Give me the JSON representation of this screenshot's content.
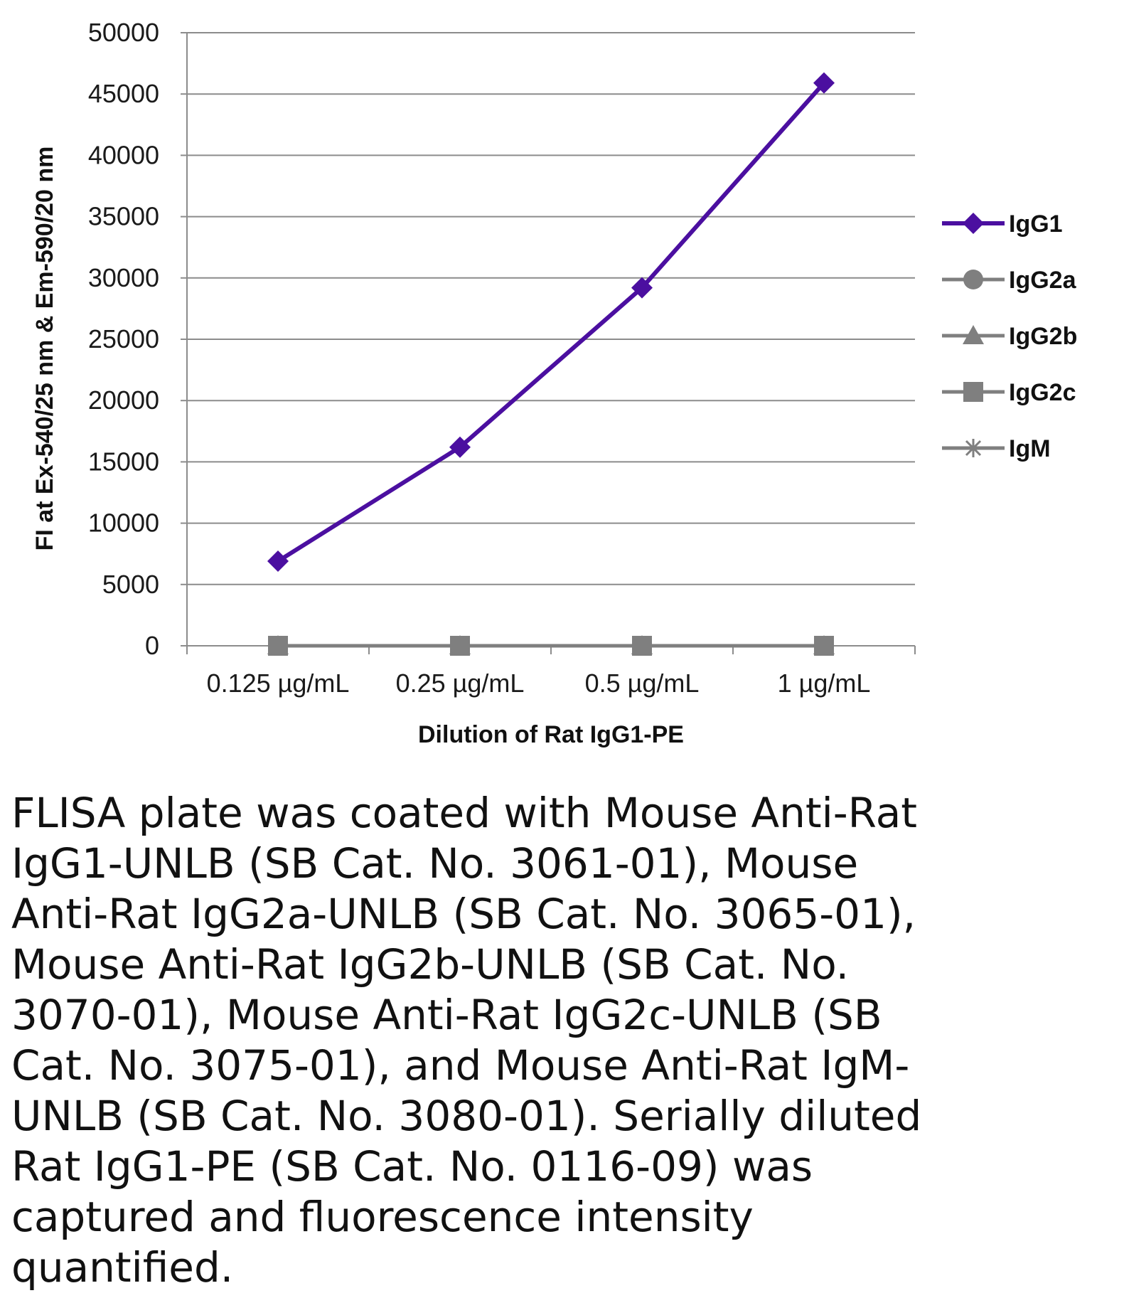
{
  "chart_data": {
    "type": "line",
    "title": "",
    "xlabel": "Dilution of Rat IgG1-PE",
    "ylabel": "FI at Ex-540/25 nm & Em-590/20 nm",
    "categories": [
      "0.125 µg/mL",
      "0.25 µg/mL",
      "0.5 µg/mL",
      "1 µg/mL"
    ],
    "ylim": [
      0,
      50000
    ],
    "yticks": [
      "0",
      "5000",
      "10000",
      "15000",
      "20000",
      "25000",
      "30000",
      "35000",
      "40000",
      "45000",
      "50000"
    ],
    "grid": true,
    "legend_position": "right",
    "series": [
      {
        "name": "IgG1",
        "values": [
          6900,
          16200,
          29200,
          45900
        ],
        "color": "#4b0fa0",
        "marker": "diamond"
      },
      {
        "name": "IgG2a",
        "values": [
          0,
          0,
          0,
          0
        ],
        "color": "#7f7f7f",
        "marker": "circle"
      },
      {
        "name": "IgG2b",
        "values": [
          0,
          0,
          0,
          0
        ],
        "color": "#7f7f7f",
        "marker": "triangle"
      },
      {
        "name": "IgG2c",
        "values": [
          0,
          0,
          0,
          0
        ],
        "color": "#7f7f7f",
        "marker": "square"
      },
      {
        "name": "IgM",
        "values": [
          0,
          0,
          0,
          0
        ],
        "color": "#7f7f7f",
        "marker": "star"
      }
    ]
  },
  "caption": "FLISA plate was coated with Mouse Anti-Rat IgG1-UNLB (SB Cat. No. 3061-01), Mouse Anti-Rat IgG2a-UNLB (SB Cat. No. 3065-01), Mouse Anti-Rat IgG2b-UNLB (SB Cat. No. 3070-01), Mouse Anti-Rat IgG2c-UNLB (SB Cat. No. 3075-01), and Mouse Anti-Rat IgM-UNLB (SB Cat. No. 3080-01).  Serially diluted Rat IgG1-PE (SB Cat. No. 0116-09) was captured and fluorescence intensity quantified."
}
